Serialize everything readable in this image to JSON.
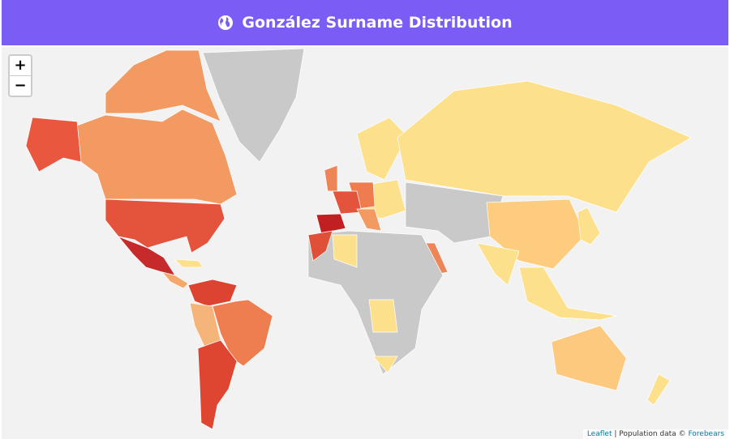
{
  "header": {
    "title": "González Surname Distribution"
  },
  "zoom": {
    "in": "+",
    "out": "−"
  },
  "attribution": {
    "leaflet": "Leaflet",
    "separator": "|",
    "text": "Population data ©",
    "source": "Forebears"
  }
}
